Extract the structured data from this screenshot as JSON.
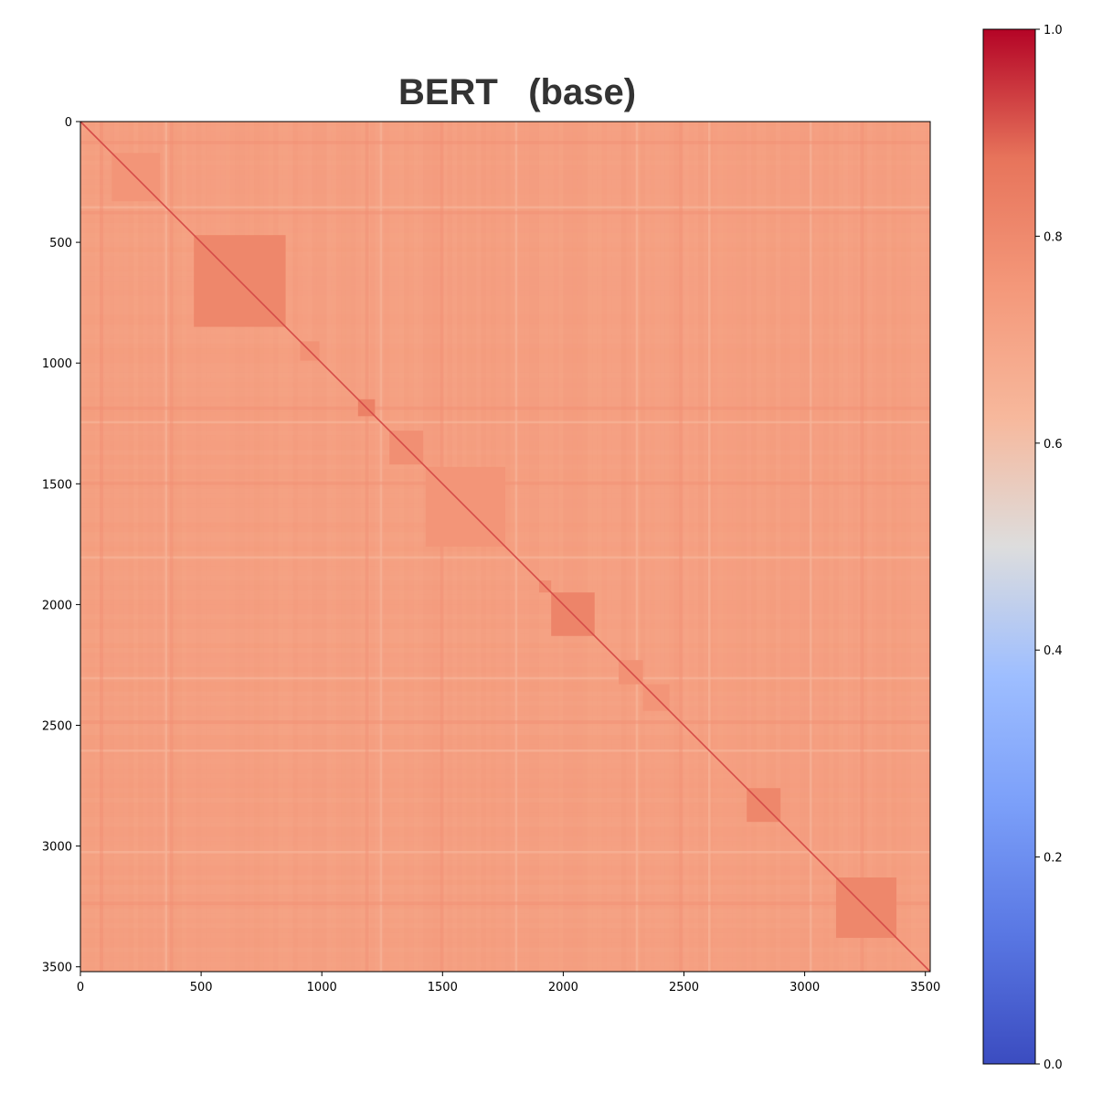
{
  "chart_data": {
    "type": "heatmap",
    "title": "BERT   (base)",
    "xlabel": "",
    "ylabel": "",
    "n": 3520,
    "xlim": [
      0,
      3520
    ],
    "ylim": [
      3520,
      0
    ],
    "x_ticks": [
      0,
      500,
      1000,
      1500,
      2000,
      2500,
      3000,
      3500
    ],
    "y_ticks": [
      0,
      500,
      1000,
      1500,
      2000,
      2500,
      3000,
      3500
    ],
    "colormap": "coolwarm",
    "colorbar": {
      "range": [
        0.0,
        1.0
      ],
      "ticks": [
        0.0,
        0.2,
        0.4,
        0.6,
        0.8,
        1.0
      ],
      "tick_labels": [
        "0.0",
        "0.2",
        "0.4",
        "0.6",
        "0.8",
        "1.0"
      ],
      "colors": [
        "#3b4cc0",
        "#dddddd",
        "#b40426"
      ]
    },
    "background_value": 0.72,
    "diagonal_value": 0.92,
    "blocks": [
      {
        "start": 130,
        "end": 330,
        "value": 0.76
      },
      {
        "start": 470,
        "end": 850,
        "value": 0.81
      },
      {
        "start": 910,
        "end": 990,
        "value": 0.77
      },
      {
        "start": 1150,
        "end": 1220,
        "value": 0.83
      },
      {
        "start": 1280,
        "end": 1420,
        "value": 0.78
      },
      {
        "start": 1430,
        "end": 1760,
        "value": 0.76
      },
      {
        "start": 1900,
        "end": 1950,
        "value": 0.79
      },
      {
        "start": 1950,
        "end": 2130,
        "value": 0.82
      },
      {
        "start": 2230,
        "end": 2330,
        "value": 0.77
      },
      {
        "start": 2330,
        "end": 2440,
        "value": 0.76
      },
      {
        "start": 2760,
        "end": 2900,
        "value": 0.81
      },
      {
        "start": 3130,
        "end": 3380,
        "value": 0.81
      }
    ],
    "light_bands": [
      350,
      1240,
      1800,
      2300,
      2600,
      3020
    ],
    "dark_bands": [
      80,
      370,
      1180,
      1490,
      2480,
      3230
    ]
  }
}
